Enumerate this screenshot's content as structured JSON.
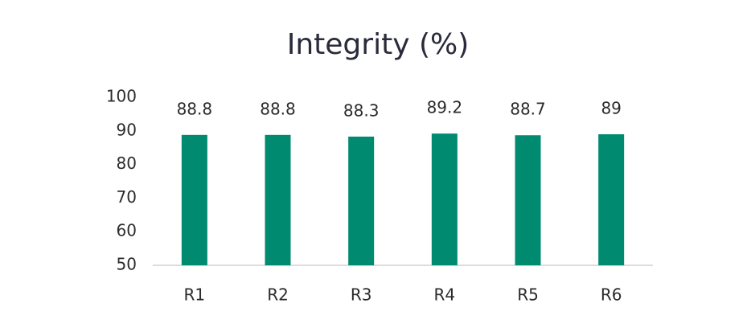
{
  "chart_data": {
    "type": "bar",
    "title": "Integrity (%)",
    "categories": [
      "R1",
      "R2",
      "R3",
      "R4",
      "R5",
      "R6"
    ],
    "values": [
      88.8,
      88.8,
      88.3,
      89.2,
      88.7,
      89
    ],
    "color": "#008a70",
    "ylim": [
      50,
      100
    ],
    "yticks": [
      50,
      60,
      70,
      80,
      90,
      100
    ],
    "grid": false
  }
}
